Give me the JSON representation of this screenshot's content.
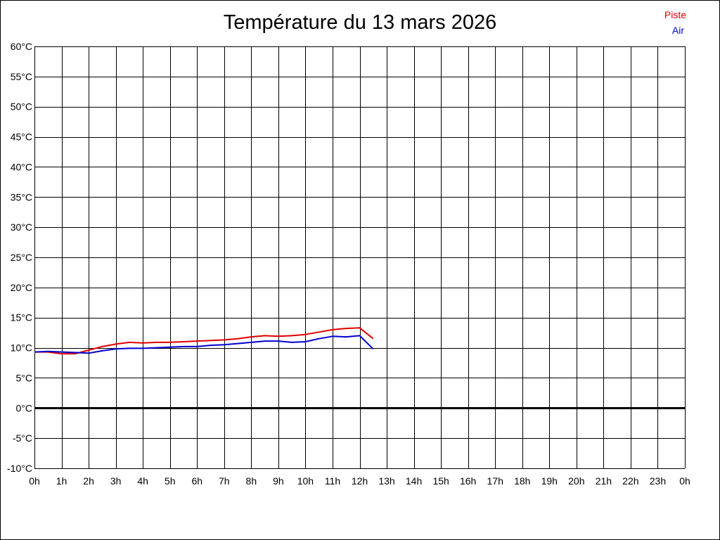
{
  "chart_data": {
    "type": "line",
    "title": "Température du 13 mars 2026",
    "xlabel": "",
    "ylabel": "",
    "xlim": [
      0,
      24
    ],
    "ylim": [
      -10,
      60
    ],
    "x_ticks": [
      {
        "value": 0,
        "label": "0h"
      },
      {
        "value": 1,
        "label": "1h"
      },
      {
        "value": 2,
        "label": "2h"
      },
      {
        "value": 3,
        "label": "3h"
      },
      {
        "value": 4,
        "label": "4h"
      },
      {
        "value": 5,
        "label": "5h"
      },
      {
        "value": 6,
        "label": "6h"
      },
      {
        "value": 7,
        "label": "7h"
      },
      {
        "value": 8,
        "label": "8h"
      },
      {
        "value": 9,
        "label": "9h"
      },
      {
        "value": 10,
        "label": "10h"
      },
      {
        "value": 11,
        "label": "11h"
      },
      {
        "value": 12,
        "label": "12h"
      },
      {
        "value": 13,
        "label": "13h"
      },
      {
        "value": 14,
        "label": "14h"
      },
      {
        "value": 15,
        "label": "15h"
      },
      {
        "value": 16,
        "label": "16h"
      },
      {
        "value": 17,
        "label": "17h"
      },
      {
        "value": 18,
        "label": "18h"
      },
      {
        "value": 19,
        "label": "19h"
      },
      {
        "value": 20,
        "label": "20h"
      },
      {
        "value": 21,
        "label": "21h"
      },
      {
        "value": 22,
        "label": "22h"
      },
      {
        "value": 23,
        "label": "23h"
      },
      {
        "value": 24,
        "label": "0h"
      }
    ],
    "y_ticks": [
      {
        "value": 60,
        "label": "60°C"
      },
      {
        "value": 55,
        "label": "55°C"
      },
      {
        "value": 50,
        "label": "50°C"
      },
      {
        "value": 45,
        "label": "45°C"
      },
      {
        "value": 40,
        "label": "40°C"
      },
      {
        "value": 35,
        "label": "35°C"
      },
      {
        "value": 30,
        "label": "30°C"
      },
      {
        "value": 25,
        "label": "25°C"
      },
      {
        "value": 20,
        "label": "20°C"
      },
      {
        "value": 15,
        "label": "15°C"
      },
      {
        "value": 10,
        "label": "10°C"
      },
      {
        "value": 5,
        "label": "5°C"
      },
      {
        "value": 0,
        "label": "0°C"
      },
      {
        "value": -5,
        "label": "-5°C"
      },
      {
        "value": -10,
        "label": "-10°C"
      }
    ],
    "grid": true,
    "zero_line": true,
    "legend_position": "top-right",
    "series": [
      {
        "name": "Piste",
        "color": "#e00000",
        "points": [
          [
            0,
            9.3
          ],
          [
            0.5,
            9.3
          ],
          [
            1,
            9.0
          ],
          [
            1.5,
            9.0
          ],
          [
            2,
            9.6
          ],
          [
            2.5,
            10.2
          ],
          [
            3,
            10.6
          ],
          [
            3.5,
            10.9
          ],
          [
            4,
            10.8
          ],
          [
            4.5,
            10.9
          ],
          [
            5,
            10.9
          ],
          [
            5.5,
            11.0
          ],
          [
            6,
            11.1
          ],
          [
            6.5,
            11.2
          ],
          [
            7,
            11.3
          ],
          [
            7.5,
            11.5
          ],
          [
            8,
            11.8
          ],
          [
            8.5,
            12.0
          ],
          [
            9,
            11.9
          ],
          [
            9.5,
            12.0
          ],
          [
            10,
            12.2
          ],
          [
            10.5,
            12.6
          ],
          [
            11,
            13.0
          ],
          [
            11.5,
            13.2
          ],
          [
            12,
            13.3
          ],
          [
            12.5,
            11.5
          ]
        ]
      },
      {
        "name": "Air",
        "color": "#0000d0",
        "points": [
          [
            0,
            9.3
          ],
          [
            0.5,
            9.4
          ],
          [
            1,
            9.3
          ],
          [
            1.5,
            9.2
          ],
          [
            2,
            9.1
          ],
          [
            2.5,
            9.5
          ],
          [
            3,
            9.8
          ],
          [
            3.5,
            9.9
          ],
          [
            4,
            9.9
          ],
          [
            4.5,
            10.0
          ],
          [
            5,
            10.1
          ],
          [
            5.5,
            10.2
          ],
          [
            6,
            10.2
          ],
          [
            6.5,
            10.4
          ],
          [
            7,
            10.5
          ],
          [
            7.5,
            10.7
          ],
          [
            8,
            10.9
          ],
          [
            8.5,
            11.1
          ],
          [
            9,
            11.1
          ],
          [
            9.5,
            10.9
          ],
          [
            10,
            11.0
          ],
          [
            10.5,
            11.5
          ],
          [
            11,
            11.9
          ],
          [
            11.5,
            11.8
          ],
          [
            12,
            12.0
          ],
          [
            12.5,
            9.8
          ]
        ]
      }
    ]
  }
}
